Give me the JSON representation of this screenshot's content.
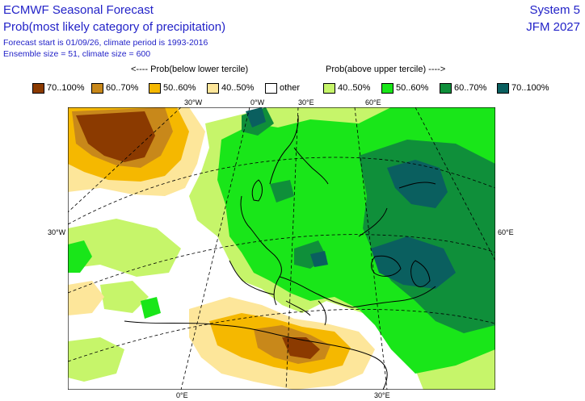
{
  "header": {
    "title": "ECMWF Seasonal Forecast",
    "subtitle": "Prob(most likely category of precipitation)",
    "forecast_info": "Forecast start is 01/09/26, climate period is 1993-2016",
    "ensemble_info": "Ensemble size = 51, climate size = 600",
    "system": "System 5",
    "period": "JFM 2027"
  },
  "legend": {
    "below_label": "<---- Prob(below lower tercile)",
    "above_label": "Prob(above upper tercile) ---->",
    "items": [
      {
        "label": "70..100%",
        "color": "#8b3a00"
      },
      {
        "label": "60..70%",
        "color": "#c8881a"
      },
      {
        "label": "50..60%",
        "color": "#f5b800"
      },
      {
        "label": "40..50%",
        "color": "#fde69a"
      },
      {
        "label": "other",
        "color": "#ffffff"
      },
      {
        "label": "40..50%",
        "color": "#c6f56a"
      },
      {
        "label": "50..60%",
        "color": "#19e619"
      },
      {
        "label": "60..70%",
        "color": "#0f8f3a"
      },
      {
        "label": "70..100%",
        "color": "#0a5f5f"
      }
    ]
  },
  "axes": {
    "top": [
      "30°W",
      "0°W",
      "30°E",
      "60°E"
    ],
    "left": "30°W",
    "right": "60°E",
    "bottom": [
      "0°E",
      "30°E"
    ]
  }
}
